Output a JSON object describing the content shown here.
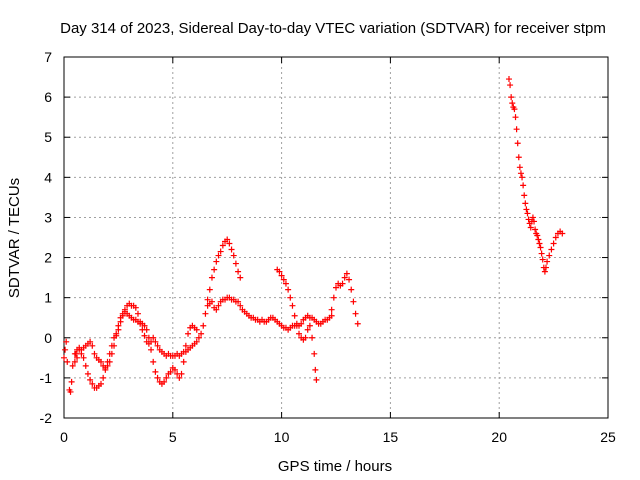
{
  "chart_data": {
    "type": "scatter",
    "title": "Day 314 of 2023, Sidereal Day-to-day VTEC variation (SDTVAR) for receiver stpm",
    "xlabel": "GPS time / hours",
    "ylabel": "SDTVAR / TECUs",
    "xlim": [
      0,
      25
    ],
    "ylim": [
      -2,
      7
    ],
    "xticks": [
      0,
      5,
      10,
      15,
      20,
      25
    ],
    "yticks": [
      -2,
      -1,
      0,
      1,
      2,
      3,
      4,
      5,
      6,
      7
    ],
    "grid": true,
    "marker": "+",
    "color": "#ff0000",
    "series": [
      {
        "points": [
          [
            0.0,
            -0.5
          ],
          [
            0.05,
            -0.3
          ],
          [
            0.1,
            -0.1
          ],
          [
            0.15,
            -0.6
          ],
          [
            0.25,
            -1.3
          ],
          [
            0.3,
            -1.35
          ],
          [
            0.35,
            -1.1
          ],
          [
            0.4,
            -0.7
          ],
          [
            0.5,
            -0.4
          ],
          [
            0.6,
            -0.5
          ],
          [
            0.7,
            -0.3
          ],
          [
            0.8,
            -0.4
          ],
          [
            0.9,
            -0.5
          ],
          [
            1.0,
            -0.7
          ],
          [
            1.1,
            -0.9
          ],
          [
            1.2,
            -1.05
          ],
          [
            1.3,
            -1.15
          ],
          [
            1.4,
            -1.25
          ],
          [
            1.5,
            -1.25
          ],
          [
            1.6,
            -1.2
          ],
          [
            1.7,
            -1.15
          ],
          [
            1.8,
            -1.0
          ],
          [
            1.9,
            -0.8
          ],
          [
            2.0,
            -0.6
          ],
          [
            2.1,
            -0.4
          ],
          [
            2.2,
            -0.2
          ],
          [
            2.3,
            0.0
          ],
          [
            2.4,
            0.1
          ],
          [
            2.5,
            0.2
          ],
          [
            2.6,
            0.4
          ],
          [
            2.7,
            0.55
          ],
          [
            2.8,
            0.7
          ],
          [
            2.9,
            0.8
          ],
          [
            3.0,
            0.85
          ],
          [
            3.1,
            0.8
          ],
          [
            3.2,
            0.8
          ],
          [
            3.3,
            0.75
          ],
          [
            3.4,
            0.6
          ],
          [
            3.5,
            0.4
          ],
          [
            3.6,
            0.2
          ],
          [
            3.7,
            0.05
          ],
          [
            3.8,
            -0.1
          ],
          [
            3.9,
            -0.15
          ],
          [
            4.0,
            -0.1
          ],
          [
            4.1,
            0.0
          ],
          [
            4.2,
            -0.1
          ],
          [
            4.3,
            -0.2
          ],
          [
            4.4,
            -0.3
          ],
          [
            4.5,
            -0.35
          ],
          [
            4.6,
            -0.4
          ],
          [
            4.7,
            -0.45
          ],
          [
            4.8,
            -0.4
          ],
          [
            4.9,
            -0.45
          ],
          [
            5.0,
            -0.45
          ],
          [
            5.1,
            -0.45
          ],
          [
            5.2,
            -0.4
          ],
          [
            5.3,
            -0.45
          ],
          [
            5.4,
            -0.4
          ],
          [
            5.5,
            -0.35
          ],
          [
            5.6,
            -0.35
          ],
          [
            5.7,
            -0.3
          ],
          [
            5.8,
            -0.25
          ],
          [
            5.9,
            -0.2
          ],
          [
            6.0,
            -0.15
          ],
          [
            6.1,
            -0.1
          ],
          [
            6.2,
            0.0
          ],
          [
            6.3,
            0.1
          ],
          [
            6.4,
            0.3
          ],
          [
            6.5,
            0.6
          ],
          [
            6.6,
            0.8
          ],
          [
            6.7,
            0.85
          ],
          [
            6.8,
            0.9
          ],
          [
            6.9,
            0.75
          ],
          [
            7.0,
            0.7
          ],
          [
            7.1,
            0.8
          ],
          [
            7.2,
            0.9
          ],
          [
            7.3,
            0.95
          ],
          [
            7.4,
            0.95
          ],
          [
            7.5,
            1.0
          ],
          [
            7.6,
            1.0
          ],
          [
            7.7,
            0.95
          ],
          [
            7.8,
            0.95
          ],
          [
            7.9,
            0.9
          ],
          [
            8.0,
            0.9
          ],
          [
            8.1,
            0.8
          ],
          [
            8.2,
            0.7
          ],
          [
            8.3,
            0.65
          ],
          [
            8.4,
            0.6
          ],
          [
            8.5,
            0.55
          ],
          [
            8.6,
            0.5
          ],
          [
            8.7,
            0.5
          ],
          [
            8.8,
            0.45
          ],
          [
            8.9,
            0.45
          ],
          [
            9.0,
            0.4
          ],
          [
            9.1,
            0.45
          ],
          [
            9.2,
            0.4
          ],
          [
            9.3,
            0.4
          ],
          [
            9.4,
            0.45
          ],
          [
            9.5,
            0.5
          ],
          [
            9.6,
            0.5
          ],
          [
            9.7,
            0.45
          ],
          [
            9.8,
            0.4
          ],
          [
            9.9,
            0.35
          ],
          [
            10.0,
            0.3
          ],
          [
            10.1,
            0.25
          ],
          [
            10.2,
            0.25
          ],
          [
            10.3,
            0.2
          ],
          [
            10.4,
            0.25
          ],
          [
            10.5,
            0.3
          ],
          [
            10.6,
            0.3
          ],
          [
            10.7,
            0.35
          ],
          [
            10.8,
            0.3
          ],
          [
            10.9,
            0.35
          ],
          [
            11.0,
            0.45
          ],
          [
            11.1,
            0.5
          ],
          [
            11.2,
            0.55
          ],
          [
            11.3,
            0.5
          ],
          [
            11.4,
            0.5
          ],
          [
            11.5,
            0.45
          ],
          [
            11.6,
            0.4
          ],
          [
            11.7,
            0.35
          ],
          [
            11.8,
            0.35
          ],
          [
            11.9,
            0.4
          ],
          [
            12.0,
            0.45
          ],
          [
            12.1,
            0.45
          ],
          [
            12.2,
            0.5
          ],
          [
            12.3,
            0.55
          ]
        ]
      },
      {
        "points": [
          [
            0.5,
            -0.6
          ],
          [
            0.55,
            -0.4
          ],
          [
            0.6,
            -0.3
          ],
          [
            0.7,
            -0.25
          ],
          [
            0.8,
            -0.3
          ],
          [
            0.9,
            -0.25
          ],
          [
            1.0,
            -0.2
          ],
          [
            1.1,
            -0.15
          ],
          [
            1.2,
            -0.1
          ],
          [
            1.3,
            -0.2
          ],
          [
            1.4,
            -0.4
          ],
          [
            1.5,
            -0.5
          ],
          [
            1.6,
            -0.55
          ],
          [
            1.7,
            -0.6
          ],
          [
            1.8,
            -0.7
          ],
          [
            1.9,
            -0.75
          ],
          [
            2.0,
            -0.7
          ],
          [
            2.1,
            -0.6
          ],
          [
            2.2,
            -0.4
          ],
          [
            2.3,
            -0.2
          ],
          [
            2.4,
            0.05
          ],
          [
            2.5,
            0.3
          ],
          [
            2.6,
            0.5
          ],
          [
            2.7,
            0.6
          ],
          [
            2.8,
            0.65
          ],
          [
            2.9,
            0.6
          ],
          [
            3.0,
            0.55
          ],
          [
            3.1,
            0.5
          ],
          [
            3.2,
            0.45
          ],
          [
            3.3,
            0.45
          ],
          [
            3.4,
            0.4
          ],
          [
            3.5,
            0.35
          ],
          [
            3.6,
            0.35
          ],
          [
            3.7,
            0.3
          ],
          [
            3.8,
            0.2
          ],
          [
            3.9,
            0.0
          ],
          [
            4.0,
            -0.3
          ],
          [
            4.1,
            -0.6
          ],
          [
            4.2,
            -0.85
          ],
          [
            4.3,
            -1.0
          ],
          [
            4.4,
            -1.1
          ],
          [
            4.5,
            -1.15
          ],
          [
            4.6,
            -1.1
          ],
          [
            4.7,
            -1.0
          ],
          [
            4.8,
            -0.9
          ],
          [
            4.9,
            -0.85
          ],
          [
            5.0,
            -0.75
          ],
          [
            5.1,
            -0.8
          ],
          [
            5.2,
            -0.9
          ],
          [
            5.3,
            -1.0
          ],
          [
            5.4,
            -0.9
          ],
          [
            5.5,
            -0.6
          ],
          [
            5.6,
            -0.2
          ],
          [
            5.7,
            0.1
          ],
          [
            5.8,
            0.25
          ],
          [
            5.9,
            0.3
          ],
          [
            6.0,
            0.25
          ],
          [
            6.1,
            0.2
          ]
        ]
      },
      {
        "points": [
          [
            6.6,
            0.95
          ],
          [
            6.7,
            1.2
          ],
          [
            6.8,
            1.5
          ],
          [
            6.9,
            1.7
          ],
          [
            7.0,
            1.9
          ],
          [
            7.1,
            2.05
          ],
          [
            7.2,
            2.15
          ],
          [
            7.3,
            2.3
          ],
          [
            7.4,
            2.4
          ],
          [
            7.5,
            2.45
          ],
          [
            7.6,
            2.35
          ],
          [
            7.7,
            2.2
          ],
          [
            7.8,
            2.05
          ],
          [
            7.9,
            1.85
          ],
          [
            8.0,
            1.65
          ],
          [
            8.1,
            1.5
          ]
        ]
      },
      {
        "points": [
          [
            9.8,
            1.7
          ],
          [
            9.9,
            1.65
          ],
          [
            10.0,
            1.55
          ],
          [
            10.1,
            1.45
          ],
          [
            10.2,
            1.35
          ],
          [
            10.3,
            1.2
          ],
          [
            10.4,
            1.0
          ],
          [
            10.5,
            0.8
          ],
          [
            10.6,
            0.55
          ],
          [
            10.7,
            0.3
          ],
          [
            10.8,
            0.1
          ],
          [
            10.9,
            0.0
          ],
          [
            11.0,
            -0.05
          ],
          [
            11.1,
            0.0
          ],
          [
            11.2,
            0.2
          ],
          [
            11.3,
            0.3
          ],
          [
            11.4,
            0.0
          ],
          [
            11.5,
            -0.4
          ],
          [
            11.55,
            -0.8
          ],
          [
            11.6,
            -1.05
          ]
        ]
      },
      {
        "points": [
          [
            12.3,
            0.7
          ],
          [
            12.4,
            1.0
          ],
          [
            12.5,
            1.25
          ],
          [
            12.6,
            1.35
          ],
          [
            12.7,
            1.3
          ],
          [
            12.8,
            1.35
          ],
          [
            12.9,
            1.5
          ],
          [
            13.0,
            1.6
          ],
          [
            13.1,
            1.45
          ],
          [
            13.2,
            1.2
          ],
          [
            13.3,
            0.9
          ],
          [
            13.4,
            0.6
          ],
          [
            13.5,
            0.35
          ]
        ]
      },
      {
        "points": [
          [
            20.45,
            6.45
          ],
          [
            20.5,
            6.3
          ],
          [
            20.55,
            6.0
          ],
          [
            20.6,
            5.85
          ],
          [
            20.65,
            5.75
          ],
          [
            20.7,
            5.7
          ],
          [
            20.75,
            5.5
          ],
          [
            20.8,
            5.2
          ],
          [
            20.85,
            4.85
          ],
          [
            20.9,
            4.5
          ],
          [
            20.95,
            4.25
          ],
          [
            21.0,
            4.1
          ],
          [
            21.05,
            4.0
          ],
          [
            21.1,
            3.8
          ],
          [
            21.15,
            3.55
          ],
          [
            21.2,
            3.35
          ],
          [
            21.25,
            3.2
          ],
          [
            21.3,
            3.1
          ],
          [
            21.35,
            2.95
          ],
          [
            21.4,
            2.85
          ],
          [
            21.45,
            2.75
          ],
          [
            21.5,
            2.9
          ],
          [
            21.55,
            3.0
          ],
          [
            21.6,
            2.9
          ],
          [
            21.65,
            2.7
          ],
          [
            21.7,
            2.6
          ],
          [
            21.75,
            2.55
          ],
          [
            21.8,
            2.45
          ],
          [
            21.85,
            2.35
          ],
          [
            21.9,
            2.25
          ],
          [
            21.95,
            2.1
          ],
          [
            22.0,
            1.95
          ],
          [
            22.05,
            1.75
          ],
          [
            22.1,
            1.65
          ],
          [
            22.15,
            1.75
          ],
          [
            22.2,
            1.9
          ],
          [
            22.3,
            2.05
          ],
          [
            22.4,
            2.2
          ],
          [
            22.5,
            2.35
          ],
          [
            22.6,
            2.5
          ],
          [
            22.7,
            2.6
          ],
          [
            22.8,
            2.65
          ],
          [
            22.9,
            2.6
          ]
        ]
      }
    ]
  }
}
